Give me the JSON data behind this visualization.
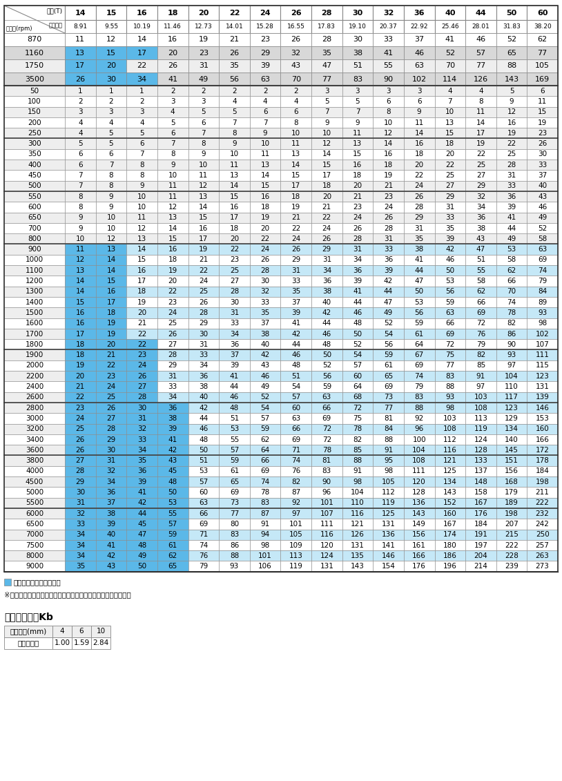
{
  "header_teeth": [
    "14",
    "15",
    "16",
    "18",
    "20",
    "22",
    "24",
    "26",
    "28",
    "30",
    "32",
    "36",
    "40",
    "44",
    "50",
    "60"
  ],
  "header_pitch": [
    "8.91",
    "9.55",
    "10.19",
    "11.46",
    "12.73",
    "14.01",
    "15.28",
    "16.55",
    "17.83",
    "19.10",
    "20.37",
    "22.92",
    "25.46",
    "28.01",
    "31.83",
    "38.20"
  ],
  "col0_label_top": "歯数(T)",
  "col0_label_mid": "ピッチ径",
  "col0_label_bot": "回転数(rpm)",
  "special_rows": [
    {
      "rpm": "870",
      "vals": [
        11,
        12,
        14,
        16,
        19,
        21,
        23,
        26,
        28,
        30,
        33,
        37,
        41,
        46,
        52,
        62
      ],
      "blue_cols": []
    },
    {
      "rpm": "1160",
      "vals": [
        13,
        15,
        17,
        20,
        23,
        26,
        29,
        32,
        35,
        38,
        41,
        46,
        52,
        57,
        65,
        77
      ],
      "blue_cols": [
        0,
        1,
        2
      ]
    },
    {
      "rpm": "1750",
      "vals": [
        17,
        20,
        22,
        26,
        31,
        35,
        39,
        43,
        47,
        51,
        55,
        63,
        70,
        77,
        88,
        105
      ],
      "blue_cols": [
        0,
        1
      ]
    },
    {
      "rpm": "3500",
      "vals": [
        26,
        30,
        34,
        41,
        49,
        56,
        63,
        70,
        77,
        83,
        90,
        102,
        114,
        126,
        143,
        169
      ],
      "blue_cols": [
        0,
        1,
        2
      ]
    }
  ],
  "data_rows": [
    {
      "rpm": "50",
      "vals": [
        1,
        1,
        1,
        2,
        2,
        2,
        2,
        2,
        3,
        3,
        3,
        3,
        4,
        4,
        5,
        6
      ],
      "blue_cols": []
    },
    {
      "rpm": "100",
      "vals": [
        2,
        2,
        2,
        3,
        3,
        4,
        4,
        4,
        5,
        5,
        6,
        6,
        7,
        8,
        9,
        11
      ],
      "blue_cols": []
    },
    {
      "rpm": "150",
      "vals": [
        3,
        3,
        3,
        4,
        5,
        5,
        6,
        6,
        7,
        7,
        8,
        9,
        10,
        11,
        12,
        15
      ],
      "blue_cols": []
    },
    {
      "rpm": "200",
      "vals": [
        4,
        4,
        4,
        5,
        6,
        7,
        7,
        8,
        9,
        9,
        10,
        11,
        13,
        14,
        16,
        19
      ],
      "blue_cols": []
    },
    {
      "rpm": "250",
      "vals": [
        4,
        5,
        5,
        6,
        7,
        8,
        9,
        10,
        10,
        11,
        12,
        14,
        15,
        17,
        19,
        23
      ],
      "blue_cols": []
    },
    {
      "rpm": "300",
      "vals": [
        5,
        5,
        6,
        7,
        8,
        9,
        10,
        11,
        12,
        13,
        14,
        16,
        18,
        19,
        22,
        26
      ],
      "blue_cols": []
    },
    {
      "rpm": "350",
      "vals": [
        6,
        6,
        7,
        8,
        9,
        10,
        11,
        13,
        14,
        15,
        16,
        18,
        20,
        22,
        25,
        30
      ],
      "blue_cols": []
    },
    {
      "rpm": "400",
      "vals": [
        6,
        7,
        8,
        9,
        10,
        11,
        13,
        14,
        15,
        16,
        18,
        20,
        22,
        25,
        28,
        33
      ],
      "blue_cols": []
    },
    {
      "rpm": "450",
      "vals": [
        7,
        8,
        8,
        10,
        11,
        13,
        14,
        15,
        17,
        18,
        19,
        22,
        25,
        27,
        31,
        37
      ],
      "blue_cols": []
    },
    {
      "rpm": "500",
      "vals": [
        7,
        8,
        9,
        11,
        12,
        14,
        15,
        17,
        18,
        20,
        21,
        24,
        27,
        29,
        33,
        40
      ],
      "blue_cols": []
    },
    {
      "rpm": "550",
      "vals": [
        8,
        9,
        10,
        11,
        13,
        15,
        16,
        18,
        20,
        21,
        23,
        26,
        29,
        32,
        36,
        43
      ],
      "blue_cols": []
    },
    {
      "rpm": "600",
      "vals": [
        8,
        9,
        10,
        12,
        14,
        16,
        18,
        19,
        21,
        23,
        24,
        28,
        31,
        34,
        39,
        46
      ],
      "blue_cols": []
    },
    {
      "rpm": "650",
      "vals": [
        9,
        10,
        11,
        13,
        15,
        17,
        19,
        21,
        22,
        24,
        26,
        29,
        33,
        36,
        41,
        49
      ],
      "blue_cols": []
    },
    {
      "rpm": "700",
      "vals": [
        9,
        10,
        12,
        14,
        16,
        18,
        20,
        22,
        24,
        26,
        28,
        31,
        35,
        38,
        44,
        52
      ],
      "blue_cols": []
    },
    {
      "rpm": "800",
      "vals": [
        10,
        12,
        13,
        15,
        17,
        20,
        22,
        24,
        26,
        28,
        31,
        35,
        39,
        43,
        49,
        58
      ],
      "blue_cols": []
    },
    {
      "rpm": "900",
      "vals": [
        11,
        13,
        14,
        16,
        19,
        22,
        24,
        26,
        29,
        31,
        33,
        38,
        42,
        47,
        53,
        63
      ],
      "blue_cols": [
        0,
        1
      ]
    },
    {
      "rpm": "1000",
      "vals": [
        12,
        14,
        15,
        18,
        21,
        23,
        26,
        29,
        31,
        34,
        36,
        41,
        46,
        51,
        58,
        69
      ],
      "blue_cols": [
        0,
        1
      ]
    },
    {
      "rpm": "1100",
      "vals": [
        13,
        14,
        16,
        19,
        22,
        25,
        28,
        31,
        34,
        36,
        39,
        44,
        50,
        55,
        62,
        74
      ],
      "blue_cols": [
        0,
        1
      ]
    },
    {
      "rpm": "1200",
      "vals": [
        14,
        15,
        17,
        20,
        24,
        27,
        30,
        33,
        36,
        39,
        42,
        47,
        53,
        58,
        66,
        79
      ],
      "blue_cols": [
        0,
        1
      ]
    },
    {
      "rpm": "1300",
      "vals": [
        14,
        16,
        18,
        22,
        25,
        28,
        32,
        35,
        38,
        41,
        44,
        50,
        56,
        62,
        70,
        84
      ],
      "blue_cols": [
        0,
        1
      ]
    },
    {
      "rpm": "1400",
      "vals": [
        15,
        17,
        19,
        23,
        26,
        30,
        33,
        37,
        40,
        44,
        47,
        53,
        59,
        66,
        74,
        89
      ],
      "blue_cols": [
        0,
        1
      ]
    },
    {
      "rpm": "1500",
      "vals": [
        16,
        18,
        20,
        24,
        28,
        31,
        35,
        39,
        42,
        46,
        49,
        56,
        63,
        69,
        78,
        93
      ],
      "blue_cols": [
        0,
        1
      ]
    },
    {
      "rpm": "1600",
      "vals": [
        16,
        19,
        21,
        25,
        29,
        33,
        37,
        41,
        44,
        48,
        52,
        59,
        66,
        72,
        82,
        98
      ],
      "blue_cols": [
        0,
        1
      ]
    },
    {
      "rpm": "1700",
      "vals": [
        17,
        19,
        22,
        26,
        30,
        34,
        38,
        42,
        46,
        50,
        54,
        61,
        69,
        76,
        86,
        102
      ],
      "blue_cols": [
        0,
        1
      ]
    },
    {
      "rpm": "1800",
      "vals": [
        18,
        20,
        22,
        27,
        31,
        36,
        40,
        44,
        48,
        52,
        56,
        64,
        72,
        79,
        90,
        107
      ],
      "blue_cols": [
        0,
        1,
        2
      ]
    },
    {
      "rpm": "1900",
      "vals": [
        18,
        21,
        23,
        28,
        33,
        37,
        42,
        46,
        50,
        54,
        59,
        67,
        75,
        82,
        93,
        111
      ],
      "blue_cols": [
        0,
        1,
        2
      ]
    },
    {
      "rpm": "2000",
      "vals": [
        19,
        22,
        24,
        29,
        34,
        39,
        43,
        48,
        52,
        57,
        61,
        69,
        77,
        85,
        97,
        115
      ],
      "blue_cols": [
        0,
        1,
        2
      ]
    },
    {
      "rpm": "2200",
      "vals": [
        20,
        23,
        26,
        31,
        36,
        41,
        46,
        51,
        56,
        60,
        65,
        74,
        83,
        91,
        104,
        123
      ],
      "blue_cols": [
        0,
        1,
        2
      ]
    },
    {
      "rpm": "2400",
      "vals": [
        21,
        24,
        27,
        33,
        38,
        44,
        49,
        54,
        59,
        64,
        69,
        79,
        88,
        97,
        110,
        131
      ],
      "blue_cols": [
        0,
        1,
        2
      ]
    },
    {
      "rpm": "2600",
      "vals": [
        22,
        25,
        28,
        34,
        40,
        46,
        52,
        57,
        63,
        68,
        73,
        83,
        93,
        103,
        117,
        139
      ],
      "blue_cols": [
        0,
        1,
        2
      ]
    },
    {
      "rpm": "2800",
      "vals": [
        23,
        26,
        30,
        36,
        42,
        48,
        54,
        60,
        66,
        72,
        77,
        88,
        98,
        108,
        123,
        146
      ],
      "blue_cols": [
        0,
        1,
        2,
        3
      ]
    },
    {
      "rpm": "3000",
      "vals": [
        24,
        27,
        31,
        38,
        44,
        51,
        57,
        63,
        69,
        75,
        81,
        92,
        103,
        113,
        129,
        153
      ],
      "blue_cols": [
        0,
        1,
        2,
        3
      ]
    },
    {
      "rpm": "3200",
      "vals": [
        25,
        28,
        32,
        39,
        46,
        53,
        59,
        66,
        72,
        78,
        84,
        96,
        108,
        119,
        134,
        160
      ],
      "blue_cols": [
        0,
        1,
        2,
        3
      ]
    },
    {
      "rpm": "3400",
      "vals": [
        26,
        29,
        33,
        41,
        48,
        55,
        62,
        69,
        72,
        82,
        88,
        100,
        112,
        124,
        140,
        166
      ],
      "blue_cols": [
        0,
        1,
        2,
        3
      ]
    },
    {
      "rpm": "3600",
      "vals": [
        26,
        30,
        34,
        42,
        50,
        57,
        64,
        71,
        78,
        85,
        91,
        104,
        116,
        128,
        145,
        172
      ],
      "blue_cols": [
        0,
        1,
        2,
        3
      ]
    },
    {
      "rpm": "3800",
      "vals": [
        27,
        31,
        35,
        43,
        51,
        59,
        66,
        74,
        81,
        88,
        95,
        108,
        121,
        133,
        151,
        178
      ],
      "blue_cols": [
        0,
        1,
        2,
        3
      ]
    },
    {
      "rpm": "4000",
      "vals": [
        28,
        32,
        36,
        45,
        53,
        61,
        69,
        76,
        83,
        91,
        98,
        111,
        125,
        137,
        156,
        184
      ],
      "blue_cols": [
        0,
        1,
        2,
        3
      ]
    },
    {
      "rpm": "4500",
      "vals": [
        29,
        34,
        39,
        48,
        57,
        65,
        74,
        82,
        90,
        98,
        105,
        120,
        134,
        148,
        168,
        198
      ],
      "blue_cols": [
        0,
        1,
        2,
        3
      ]
    },
    {
      "rpm": "5000",
      "vals": [
        30,
        36,
        41,
        50,
        60,
        69,
        78,
        87,
        96,
        104,
        112,
        128,
        143,
        158,
        179,
        211
      ],
      "blue_cols": [
        0,
        1,
        2,
        3
      ]
    },
    {
      "rpm": "5500",
      "vals": [
        31,
        37,
        42,
        53,
        63,
        73,
        83,
        92,
        101,
        110,
        119,
        136,
        152,
        167,
        189,
        222
      ],
      "blue_cols": [
        0,
        1,
        2,
        3
      ]
    },
    {
      "rpm": "6000",
      "vals": [
        32,
        38,
        44,
        55,
        66,
        77,
        87,
        97,
        107,
        116,
        125,
        143,
        160,
        176,
        198,
        232
      ],
      "blue_cols": [
        0,
        1,
        2,
        3
      ]
    },
    {
      "rpm": "6500",
      "vals": [
        33,
        39,
        45,
        57,
        69,
        80,
        91,
        101,
        111,
        121,
        131,
        149,
        167,
        184,
        207,
        242
      ],
      "blue_cols": [
        0,
        1,
        2,
        3
      ]
    },
    {
      "rpm": "7000",
      "vals": [
        34,
        40,
        47,
        59,
        71,
        83,
        94,
        105,
        116,
        126,
        136,
        156,
        174,
        191,
        215,
        250
      ],
      "blue_cols": [
        0,
        1,
        2,
        3
      ]
    },
    {
      "rpm": "7500",
      "vals": [
        34,
        41,
        48,
        61,
        74,
        86,
        98,
        109,
        120,
        131,
        141,
        161,
        180,
        197,
        222,
        257
      ],
      "blue_cols": [
        0,
        1,
        2,
        3
      ]
    },
    {
      "rpm": "8000",
      "vals": [
        34,
        42,
        49,
        62,
        76,
        88,
        101,
        113,
        124,
        135,
        146,
        166,
        186,
        204,
        228,
        263
      ],
      "blue_cols": [
        0,
        1,
        2,
        3
      ]
    },
    {
      "rpm": "9000",
      "vals": [
        35,
        43,
        50,
        65,
        79,
        93,
        106,
        119,
        131,
        143,
        154,
        176,
        196,
        214,
        239,
        273
      ],
      "blue_cols": [
        0,
        1,
        2,
        3
      ]
    }
  ],
  "group_separators_after": [
    "250",
    "500",
    "800",
    "1800",
    "2600",
    "3600",
    "5500",
    "9000"
  ],
  "note1": "耗久時間が減少します。",
  "note2": "※上記に記載されていない回転数は比例計算し算出して下さい。",
  "kb_title": "幅補正係数　Kb",
  "kb_row1": [
    "ベルト幅(mm)",
    "4",
    "6",
    "10"
  ],
  "kb_row2": [
    "幅補正係数",
    "1.00",
    "1.59",
    "2.84"
  ],
  "color_bright_blue": "#5BB8E8",
  "color_light_blue": "#C5E8F7",
  "color_row_gray": "#D8D8D8",
  "color_row_light": "#EEEEEE",
  "color_white": "#FFFFFF",
  "color_border": "#888888",
  "color_border_thick": "#404040"
}
